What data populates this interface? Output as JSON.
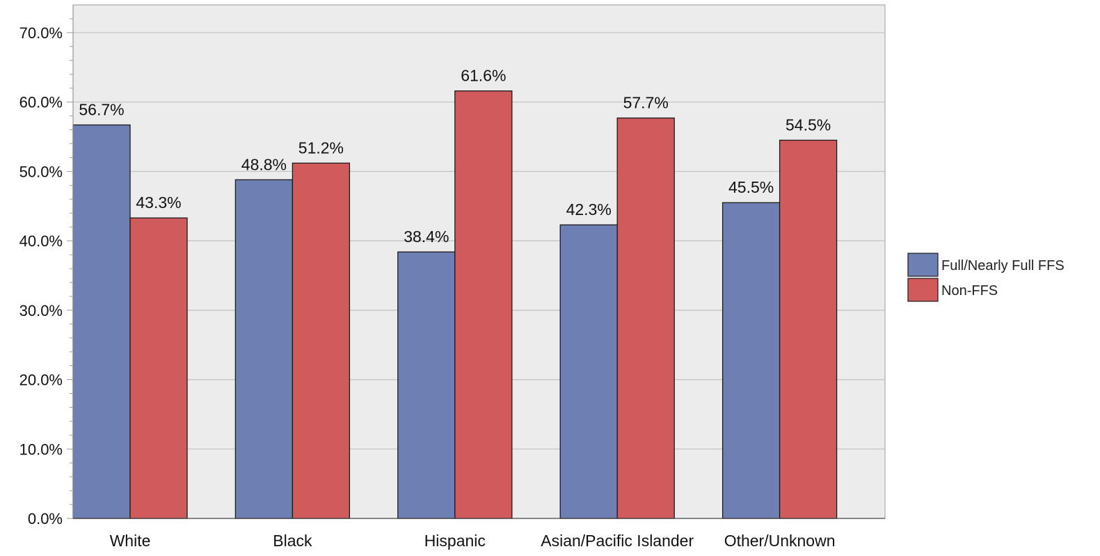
{
  "chart_data": {
    "type": "bar",
    "title": "",
    "xlabel": "",
    "ylabel": "",
    "categories": [
      "White",
      "Black",
      "Hispanic",
      "Asian/Pacific Islander",
      "Other/Unknown"
    ],
    "series": [
      {
        "name": "Full/Nearly Full FFS",
        "color": "#6e7fb3",
        "values": [
          56.7,
          48.8,
          38.4,
          42.3,
          45.5
        ]
      },
      {
        "name": "Non-FFS",
        "color": "#d05a5c",
        "values": [
          43.3,
          51.2,
          61.6,
          57.7,
          54.5
        ]
      }
    ],
    "data_labels": [
      [
        "56.7%",
        "48.8%",
        "38.4%",
        "42.3%",
        "45.5%"
      ],
      [
        "43.3%",
        "51.2%",
        "61.6%",
        "57.7%",
        "54.5%"
      ]
    ],
    "yticks": [
      "0.0%",
      "10.0%",
      "20.0%",
      "30.0%",
      "40.0%",
      "50.0%",
      "60.0%",
      "70.0%"
    ],
    "ylim": [
      0,
      74
    ],
    "grid": true,
    "legend": {
      "placement": "right",
      "entries": [
        "Full/Nearly Full FFS",
        "Non-FFS"
      ]
    },
    "colors": {
      "plot_background": "#ececec",
      "gridline": "#c4c4c4",
      "axis": "#9a9a9a"
    }
  }
}
